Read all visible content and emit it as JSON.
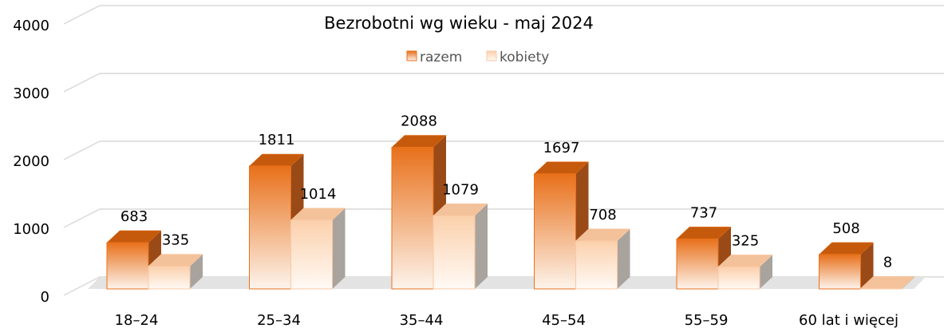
{
  "chart_data": {
    "type": "bar",
    "title": "Bezrobotni  wg wieku  - maj 2024",
    "categories": [
      "18–24",
      "25–34",
      "35–44",
      "45–54",
      "55–59",
      "60 lat i więcej"
    ],
    "series": [
      {
        "name": "razem",
        "color": "#e8711c",
        "values": [
          683,
          1811,
          2088,
          1697,
          737,
          508
        ]
      },
      {
        "name": "kobiety",
        "color": "#f9c9a3",
        "values": [
          335,
          1014,
          1079,
          708,
          325,
          8
        ]
      }
    ],
    "ylim": [
      0,
      4000
    ],
    "yticks": [
      0,
      1000,
      2000,
      3000,
      4000
    ],
    "grid": true,
    "legend": "top"
  }
}
